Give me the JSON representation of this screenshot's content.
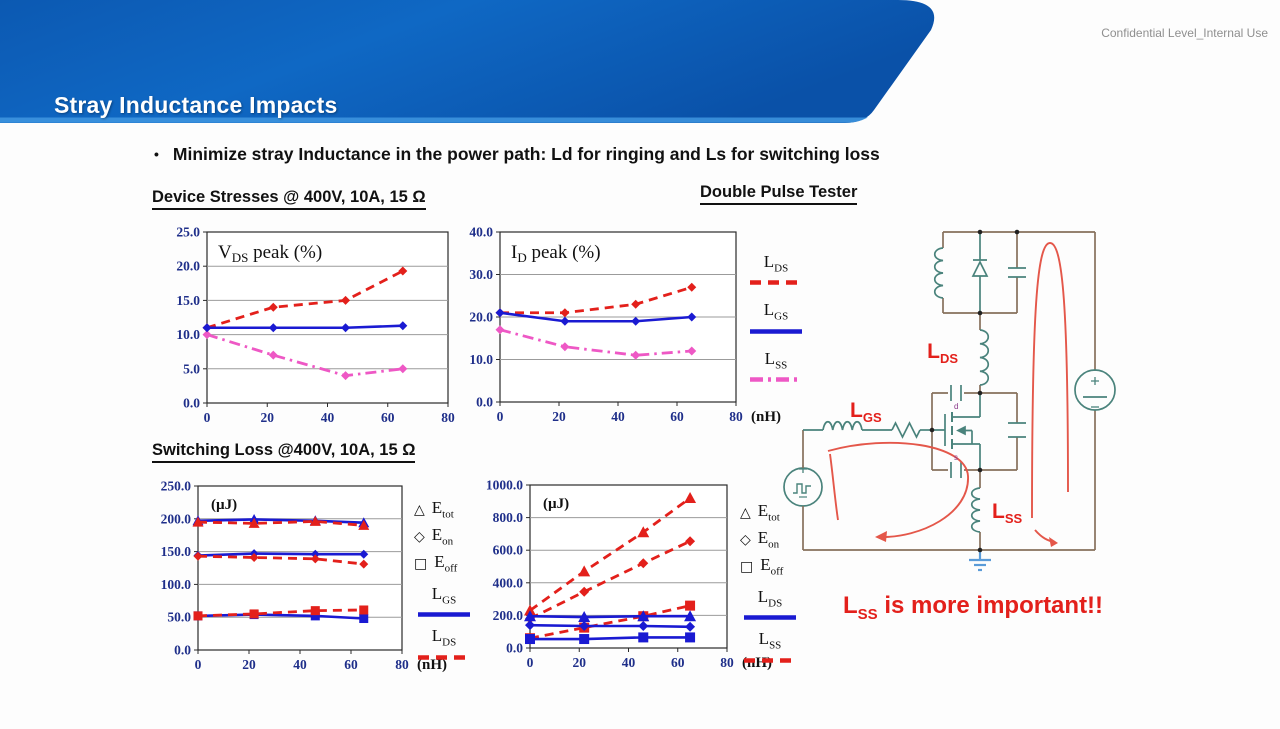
{
  "header": {
    "title": "Stray Inductance Impacts",
    "confidential": "Confidential Level_Internal Use"
  },
  "bullet": {
    "marker": "•",
    "text": "Minimize stray Inductance in the power path: Ld for ringing and Ls for switching loss"
  },
  "headings": {
    "device": "Device Stresses @ 400V, 10A, 15 Ω",
    "tester": "Double Pulse Tester",
    "switching": "Switching Loss @400V, 10A, 15 Ω"
  },
  "colors": {
    "red": "#e3201b",
    "blue": "#1a1ad2",
    "magenta": "#ee58c5",
    "navy_tick": "#1f2f8a",
    "wire_brown": "#86705c",
    "wire_teal": "#4a837c",
    "loop_red": "#e4574a",
    "ground_blue": "#5a9bd8",
    "banner_blue": "#0d5eb4"
  },
  "legends": {
    "stress": {
      "lines": [
        {
          "base": "L",
          "sub": "DS",
          "color": "red",
          "dash": "dashed"
        },
        {
          "base": "L",
          "sub": "GS",
          "color": "blue",
          "dash": "solid"
        },
        {
          "base": "L",
          "sub": "SS",
          "color": "magenta",
          "dash": "dashdot"
        }
      ]
    },
    "loss_left": {
      "markers": [
        {
          "sym": "△",
          "base": "E",
          "sub": "tot"
        },
        {
          "sym": "◇",
          "base": "E",
          "sub": "on"
        },
        {
          "sym": "□",
          "base": "E",
          "sub": "off"
        }
      ],
      "lines": [
        {
          "base": "L",
          "sub": "GS",
          "color": "blue",
          "dash": "solid"
        },
        {
          "base": "L",
          "sub": "DS",
          "color": "red",
          "dash": "dashed"
        }
      ]
    },
    "loss_right": {
      "markers": [
        {
          "sym": "△",
          "base": "E",
          "sub": "tot"
        },
        {
          "sym": "◇",
          "base": "E",
          "sub": "on"
        },
        {
          "sym": "□",
          "base": "E",
          "sub": "off"
        }
      ],
      "lines": [
        {
          "base": "L",
          "sub": "DS",
          "color": "blue",
          "dash": "solid"
        },
        {
          "base": "L",
          "sub": "SS",
          "color": "red",
          "dash": "dashed"
        }
      ]
    }
  },
  "circuit": {
    "lds": {
      "base": "L",
      "sub": "DS"
    },
    "lgs": {
      "base": "L",
      "sub": "GS"
    },
    "lss": {
      "base": "L",
      "sub": "SS"
    },
    "mosfet": {
      "drain": "d",
      "source": "s"
    }
  },
  "note": {
    "base": "L",
    "sub": "SS",
    "rest": " is more important!!"
  },
  "chart_data": [
    {
      "id": "vds-peak",
      "type": "line",
      "title": {
        "base": "V",
        "sub": "DS",
        "rest": " peak (%)"
      },
      "xlim": [
        0,
        80
      ],
      "ylim": [
        0,
        25
      ],
      "xticks": [
        0,
        20,
        40,
        60,
        80
      ],
      "yticks": [
        0,
        5,
        10,
        15,
        20,
        25
      ],
      "x": [
        0,
        22,
        46,
        65
      ],
      "xunit": null,
      "series": [
        {
          "name": "L_SS",
          "color": "magenta",
          "dash": "dashdot",
          "marker": "diamond",
          "values": [
            10,
            7,
            4,
            5
          ]
        },
        {
          "name": "L_DS",
          "color": "red",
          "dash": "dashed",
          "marker": "diamond",
          "values": [
            11,
            14,
            15,
            19.3
          ]
        },
        {
          "name": "L_GS",
          "color": "blue",
          "dash": "solid",
          "marker": "diamond",
          "values": [
            11,
            11,
            11,
            11.3
          ]
        }
      ]
    },
    {
      "id": "id-peak",
      "type": "line",
      "title": {
        "base": "I",
        "sub": "D",
        "rest": " peak (%)"
      },
      "xlim": [
        0,
        80
      ],
      "ylim": [
        0,
        40
      ],
      "xticks": [
        0,
        20,
        40,
        60,
        80
      ],
      "yticks": [
        0,
        10,
        20,
        30,
        40
      ],
      "x": [
        0,
        22,
        46,
        65
      ],
      "xunit": "(nH)",
      "series": [
        {
          "name": "L_SS",
          "color": "magenta",
          "dash": "dashdot",
          "marker": "diamond",
          "values": [
            17,
            13,
            11,
            12
          ]
        },
        {
          "name": "L_DS",
          "color": "red",
          "dash": "dashed",
          "marker": "diamond",
          "values": [
            21,
            21,
            23,
            27
          ]
        },
        {
          "name": "L_GS",
          "color": "blue",
          "dash": "solid",
          "marker": "diamond",
          "values": [
            21,
            19,
            19,
            20
          ]
        }
      ]
    },
    {
      "id": "loss-low",
      "type": "line",
      "unit": "(µJ)",
      "xlim": [
        0,
        80
      ],
      "ylim": [
        0,
        250
      ],
      "xticks": [
        0,
        20,
        40,
        60,
        80
      ],
      "yticks": [
        0,
        50,
        100,
        150,
        200,
        250
      ],
      "x": [
        0,
        22,
        46,
        65
      ],
      "xunit": "(nH)",
      "series": [
        {
          "name": "Etot (LGS)",
          "color": "blue",
          "dash": "solid",
          "marker": "triangle",
          "values": [
            197,
            199,
            197,
            194
          ]
        },
        {
          "name": "Eon (LGS)",
          "color": "blue",
          "dash": "solid",
          "marker": "diamond",
          "values": [
            144,
            147,
            146,
            146
          ]
        },
        {
          "name": "Eoff (LGS)",
          "color": "blue",
          "dash": "solid",
          "marker": "square",
          "values": [
            52,
            54,
            52,
            48
          ]
        },
        {
          "name": "Etot (LDS)",
          "color": "red",
          "dash": "dashed",
          "marker": "triangle",
          "values": [
            195,
            193,
            196,
            190
          ]
        },
        {
          "name": "Eon (LDS)",
          "color": "red",
          "dash": "dashed",
          "marker": "diamond",
          "values": [
            143,
            141,
            139,
            131
          ]
        },
        {
          "name": "Eoff (LDS)",
          "color": "red",
          "dash": "dashed",
          "marker": "square",
          "values": [
            52,
            55,
            60,
            61
          ]
        }
      ]
    },
    {
      "id": "loss-high",
      "type": "line",
      "unit": "(µJ)",
      "xlim": [
        0,
        80
      ],
      "ylim": [
        0,
        1000
      ],
      "xticks": [
        0,
        20,
        40,
        60,
        80
      ],
      "yticks": [
        0,
        200,
        400,
        600,
        800,
        1000
      ],
      "x": [
        0,
        22,
        46,
        65
      ],
      "xunit": "(nH)",
      "series": [
        {
          "name": "Etot (LSS)",
          "color": "red",
          "dash": "dashed",
          "marker": "triangle",
          "values": [
            230,
            470,
            710,
            920
          ]
        },
        {
          "name": "Eon (LSS)",
          "color": "red",
          "dash": "dashed",
          "marker": "diamond",
          "values": [
            180,
            345,
            520,
            655
          ]
        },
        {
          "name": "Eoff (LSS)",
          "color": "red",
          "dash": "dashed",
          "marker": "square",
          "values": [
            60,
            125,
            195,
            260
          ]
        },
        {
          "name": "Etot (LDS)",
          "color": "blue",
          "dash": "solid",
          "marker": "triangle",
          "values": [
            195,
            190,
            195,
            195
          ]
        },
        {
          "name": "Eon (LDS)",
          "color": "blue",
          "dash": "solid",
          "marker": "diamond",
          "values": [
            140,
            135,
            135,
            130
          ]
        },
        {
          "name": "Eoff (LDS)",
          "color": "blue",
          "dash": "solid",
          "marker": "square",
          "values": [
            55,
            55,
            65,
            65
          ]
        }
      ]
    }
  ]
}
